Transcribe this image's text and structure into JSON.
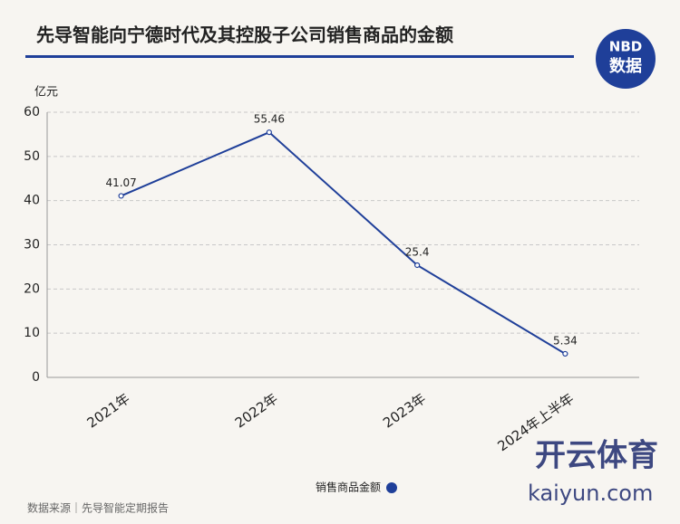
{
  "chart_data": {
    "type": "line",
    "title": "先导智能向宁德时代及其控股子公司销售商品的金额",
    "y_label": "亿元",
    "categories": [
      "2021年",
      "2022年",
      "2023年",
      "2024年上半年"
    ],
    "series": [
      {
        "name": "销售商品金额",
        "color": "#1f3f99",
        "values": [
          41.07,
          55.46,
          25.4,
          5.34
        ]
      }
    ],
    "ylim": [
      0,
      60
    ],
    "yticks": [
      0,
      10,
      20,
      30,
      40,
      50,
      60
    ],
    "grid": true,
    "source": "数据来源｜先导智能定期报告",
    "logo": [
      "NBD",
      "数据"
    ],
    "watermark": [
      "开云体育",
      "kaiyun.com"
    ]
  }
}
